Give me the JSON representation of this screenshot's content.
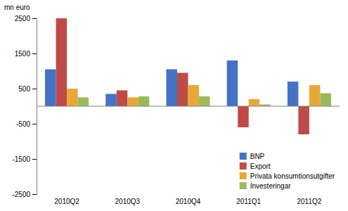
{
  "chart_data": {
    "type": "bar",
    "ylabel": "mn euro",
    "categories": [
      "2010Q2",
      "2010Q3",
      "2010Q4",
      "2011Q1",
      "2011Q2"
    ],
    "series": [
      {
        "name": "BNP",
        "color": "#4472C4",
        "values": [
          1050,
          350,
          1050,
          1300,
          700
        ]
      },
      {
        "name": "Export",
        "color": "#BE4B48",
        "values": [
          2500,
          450,
          950,
          -600,
          -800
        ]
      },
      {
        "name": "Privata konsumtionsutgifter",
        "color": "#E8A838",
        "values": [
          500,
          250,
          600,
          200,
          600
        ]
      },
      {
        "name": "Investeringar",
        "color": "#9BBB59",
        "values": [
          250,
          280,
          280,
          50,
          370
        ]
      }
    ],
    "ylim": [
      -2500,
      2500
    ],
    "yticks": [
      -2500,
      -1500,
      -500,
      500,
      1500,
      2500
    ],
    "grid": false,
    "legend": "lower right"
  }
}
